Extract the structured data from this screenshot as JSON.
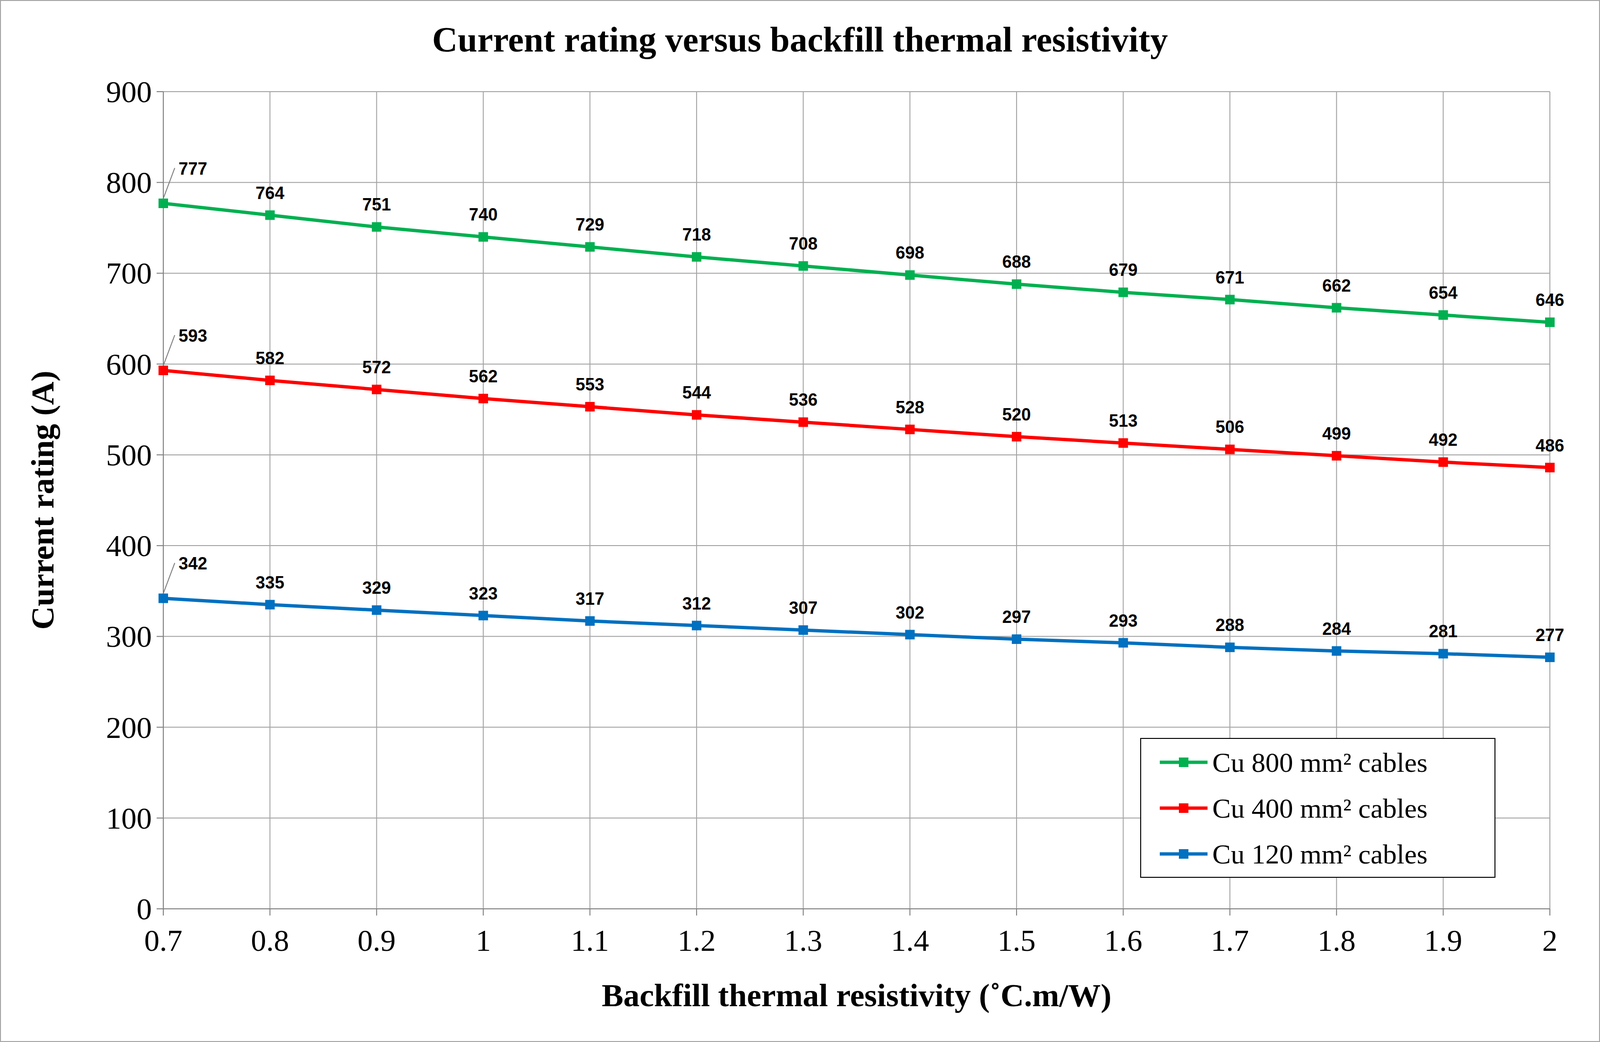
{
  "chart_data": {
    "type": "line",
    "title": "Current rating versus backfill thermal resistivity",
    "x_label": "Backfill thermal resistivity (˚C.m/W)",
    "y_label": "Current rating (A)",
    "x": [
      0.7,
      0.8,
      0.9,
      1,
      1.1,
      1.2,
      1.3,
      1.4,
      1.5,
      1.6,
      1.7,
      1.8,
      1.9,
      2
    ],
    "series": [
      {
        "name": "Cu 800 mm² cables",
        "color": "#00b050",
        "values": [
          777,
          764,
          751,
          740,
          729,
          718,
          708,
          698,
          688,
          679,
          671,
          662,
          654,
          646
        ]
      },
      {
        "name": "Cu 400 mm² cables",
        "color": "#ff0000",
        "values": [
          593,
          582,
          572,
          562,
          553,
          544,
          536,
          528,
          520,
          513,
          506,
          499,
          492,
          486
        ]
      },
      {
        "name": "Cu 120 mm² cables",
        "color": "#0070c0",
        "values": [
          342,
          335,
          329,
          323,
          317,
          312,
          307,
          302,
          297,
          293,
          288,
          284,
          281,
          277
        ]
      }
    ],
    "xlim": [
      0.7,
      2
    ],
    "xticks": [
      0.7,
      0.8,
      0.9,
      1,
      1.1,
      1.2,
      1.3,
      1.4,
      1.5,
      1.6,
      1.7,
      1.8,
      1.9,
      2
    ],
    "ylim": [
      0,
      900
    ],
    "yticks": [
      0,
      100,
      200,
      300,
      400,
      500,
      600,
      700,
      800,
      900
    ],
    "grid": true,
    "legend": "lower right",
    "data_labels": true,
    "marker": "square"
  }
}
